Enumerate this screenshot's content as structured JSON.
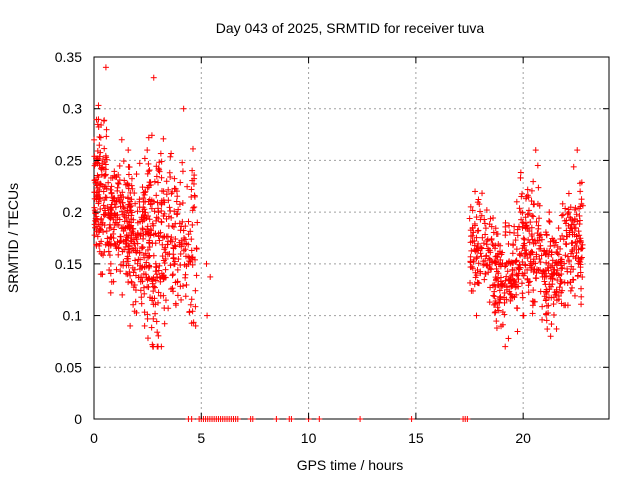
{
  "chart_data": {
    "type": "scatter",
    "title": "Day 043 of 2025, SRMTID for receiver tuva",
    "xlabel": "GPS time / hours",
    "ylabel": "SRMTID / TECUs",
    "xlim": [
      0,
      24
    ],
    "ylim": [
      0,
      0.35
    ],
    "x_ticks": [
      0,
      5,
      10,
      15,
      20
    ],
    "x_tick_labels": [
      "0",
      "5",
      "10",
      "15",
      "20"
    ],
    "y_ticks": [
      0,
      0.05,
      0.1,
      0.15,
      0.2,
      0.25,
      0.3,
      0.35
    ],
    "y_tick_labels": [
      "0",
      "0.05",
      "0.1",
      "0.15",
      "0.2",
      "0.25",
      "0.3",
      "0.35"
    ],
    "grid": true,
    "marker": "+",
    "marker_color": "#ff0000",
    "series": [
      {
        "name": "SRMTID",
        "clusters": [
          {
            "x_start": 0.0,
            "x_end": 0.6,
            "y_min": 0.14,
            "y_max": 0.34,
            "y_center": 0.22,
            "count": 130
          },
          {
            "x_start": 0.6,
            "x_end": 1.8,
            "y_min": 0.12,
            "y_max": 0.27,
            "y_center": 0.19,
            "count": 170
          },
          {
            "x_start": 1.5,
            "x_end": 2.6,
            "y_min": 0.09,
            "y_max": 0.26,
            "y_center": 0.175,
            "count": 160
          },
          {
            "x_start": 2.5,
            "x_end": 3.4,
            "y_min": 0.07,
            "y_max": 0.33,
            "y_center": 0.17,
            "count": 150
          },
          {
            "x_start": 3.4,
            "x_end": 4.8,
            "y_min": 0.09,
            "y_max": 0.3,
            "y_center": 0.175,
            "count": 140
          },
          {
            "x_start": 4.8,
            "x_end": 5.5,
            "y_min": 0.1,
            "y_max": 0.19,
            "y_center": 0.15,
            "count": 4
          },
          {
            "x_start": 17.5,
            "x_end": 18.6,
            "y_min": 0.1,
            "y_max": 0.22,
            "y_center": 0.165,
            "count": 110
          },
          {
            "x_start": 18.6,
            "x_end": 19.8,
            "y_min": 0.07,
            "y_max": 0.21,
            "y_center": 0.14,
            "count": 150
          },
          {
            "x_start": 19.8,
            "x_end": 20.8,
            "y_min": 0.1,
            "y_max": 0.26,
            "y_center": 0.17,
            "count": 130
          },
          {
            "x_start": 20.8,
            "x_end": 21.8,
            "y_min": 0.08,
            "y_max": 0.2,
            "y_center": 0.14,
            "count": 130
          },
          {
            "x_start": 21.8,
            "x_end": 22.8,
            "y_min": 0.11,
            "y_max": 0.26,
            "y_center": 0.17,
            "count": 120
          }
        ],
        "zero_points_x": [
          4.4,
          4.55,
          4.9,
          5.0,
          5.1,
          5.2,
          5.3,
          5.4,
          5.5,
          5.6,
          5.7,
          5.8,
          5.9,
          6.0,
          6.1,
          6.2,
          6.3,
          6.4,
          6.5,
          6.6,
          6.7,
          7.3,
          7.4,
          8.5,
          9.1,
          9.2,
          10.0,
          10.5,
          12.4,
          14.8,
          17.2,
          17.3,
          17.4
        ]
      }
    ]
  }
}
